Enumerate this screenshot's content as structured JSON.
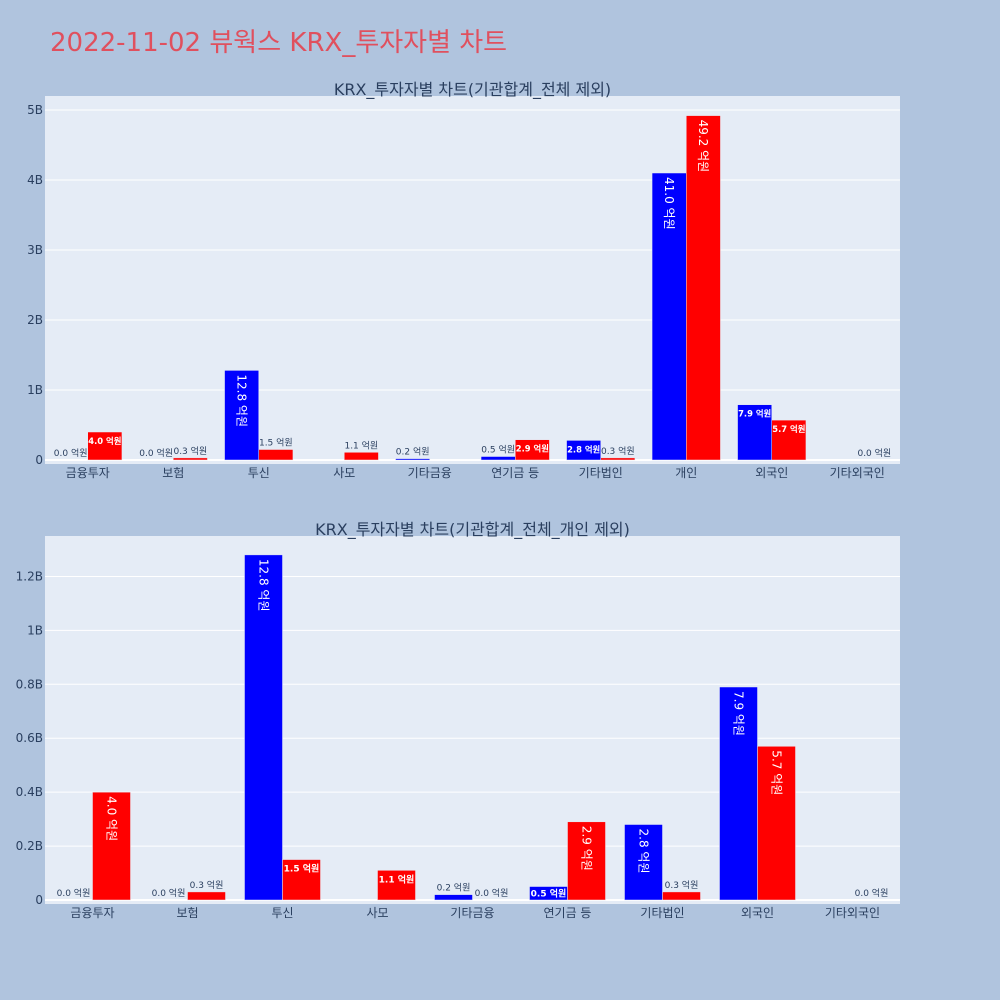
{
  "page": {
    "title": "2022-11-02 뷰웍스 KRX_투자자별 차트"
  },
  "colors": {
    "background": "#b0c4de",
    "plot_bg": "#e5ecf6",
    "grid": "#ffffff",
    "title": "#e0505e",
    "series_a": "#0000ff",
    "series_b": "#ff0000",
    "text": "#2a3f5f"
  },
  "chart_data": [
    {
      "type": "bar",
      "title": "KRX_투자자별 차트(기관합계_전체 제외)",
      "categories": [
        "금융투자",
        "보험",
        "투신",
        "사모",
        "기타금융",
        "연기금 등",
        "기타법인",
        "개인",
        "외국인",
        "기타외국인"
      ],
      "ylim": [
        0,
        5.2
      ],
      "yticks": [
        0,
        1,
        2,
        3,
        4,
        5
      ],
      "ytick_labels": [
        "0",
        "1B",
        "2B",
        "3B",
        "4B",
        "5B"
      ],
      "grid": true,
      "legend": "none",
      "series": [
        {
          "color": "#0000ff",
          "values": [
            0.0,
            0.0,
            1.28,
            null,
            0.02,
            0.05,
            0.28,
            4.1,
            0.79,
            null
          ],
          "labels": [
            "0.0 억원",
            "0.0 억원",
            "12.8 억원",
            "",
            "0.2 억원",
            "0.5 억원",
            "2.8 억원",
            "41.0 억원",
            "7.9 억원",
            ""
          ]
        },
        {
          "color": "#ff0000",
          "values": [
            0.4,
            0.03,
            0.15,
            0.11,
            null,
            0.29,
            0.03,
            4.92,
            0.57,
            0.0
          ],
          "labels": [
            "4.0 억원",
            "0.3 억원",
            "1.5 억원",
            "1.1 억원",
            "",
            "2.9 억원",
            "0.3 억원",
            "49.2 억원",
            "5.7 억원",
            "0.0 억원"
          ]
        }
      ]
    },
    {
      "type": "bar",
      "title": "KRX_투자자별 차트(기관합계_전체_개인 제외)",
      "categories": [
        "금융투자",
        "보험",
        "투신",
        "사모",
        "기타금융",
        "연기금 등",
        "기타법인",
        "외국인",
        "기타외국인"
      ],
      "ylim": [
        0,
        1.35
      ],
      "yticks": [
        0,
        0.2,
        0.4,
        0.6,
        0.8,
        1.0,
        1.2
      ],
      "ytick_labels": [
        "0",
        "0.2B",
        "0.4B",
        "0.6B",
        "0.8B",
        "1B",
        "1.2B"
      ],
      "grid": true,
      "legend": "none",
      "series": [
        {
          "color": "#0000ff",
          "values": [
            0.0,
            0.0,
            1.28,
            null,
            0.02,
            0.05,
            0.28,
            0.79,
            null
          ],
          "labels": [
            "0.0 억원",
            "0.0 억원",
            "12.8 억원",
            "",
            "0.2 억원",
            "0.5 억원",
            "2.8 억원",
            "7.9 억원",
            ""
          ]
        },
        {
          "color": "#ff0000",
          "values": [
            0.4,
            0.03,
            0.15,
            0.11,
            0.0,
            0.29,
            0.03,
            0.57,
            0.0
          ],
          "labels": [
            "4.0 억원",
            "0.3 억원",
            "1.5 억원",
            "1.1 억원",
            "0.0 억원",
            "2.9 억원",
            "0.3 억원",
            "5.7 억원",
            "0.0 억원"
          ]
        }
      ]
    }
  ]
}
